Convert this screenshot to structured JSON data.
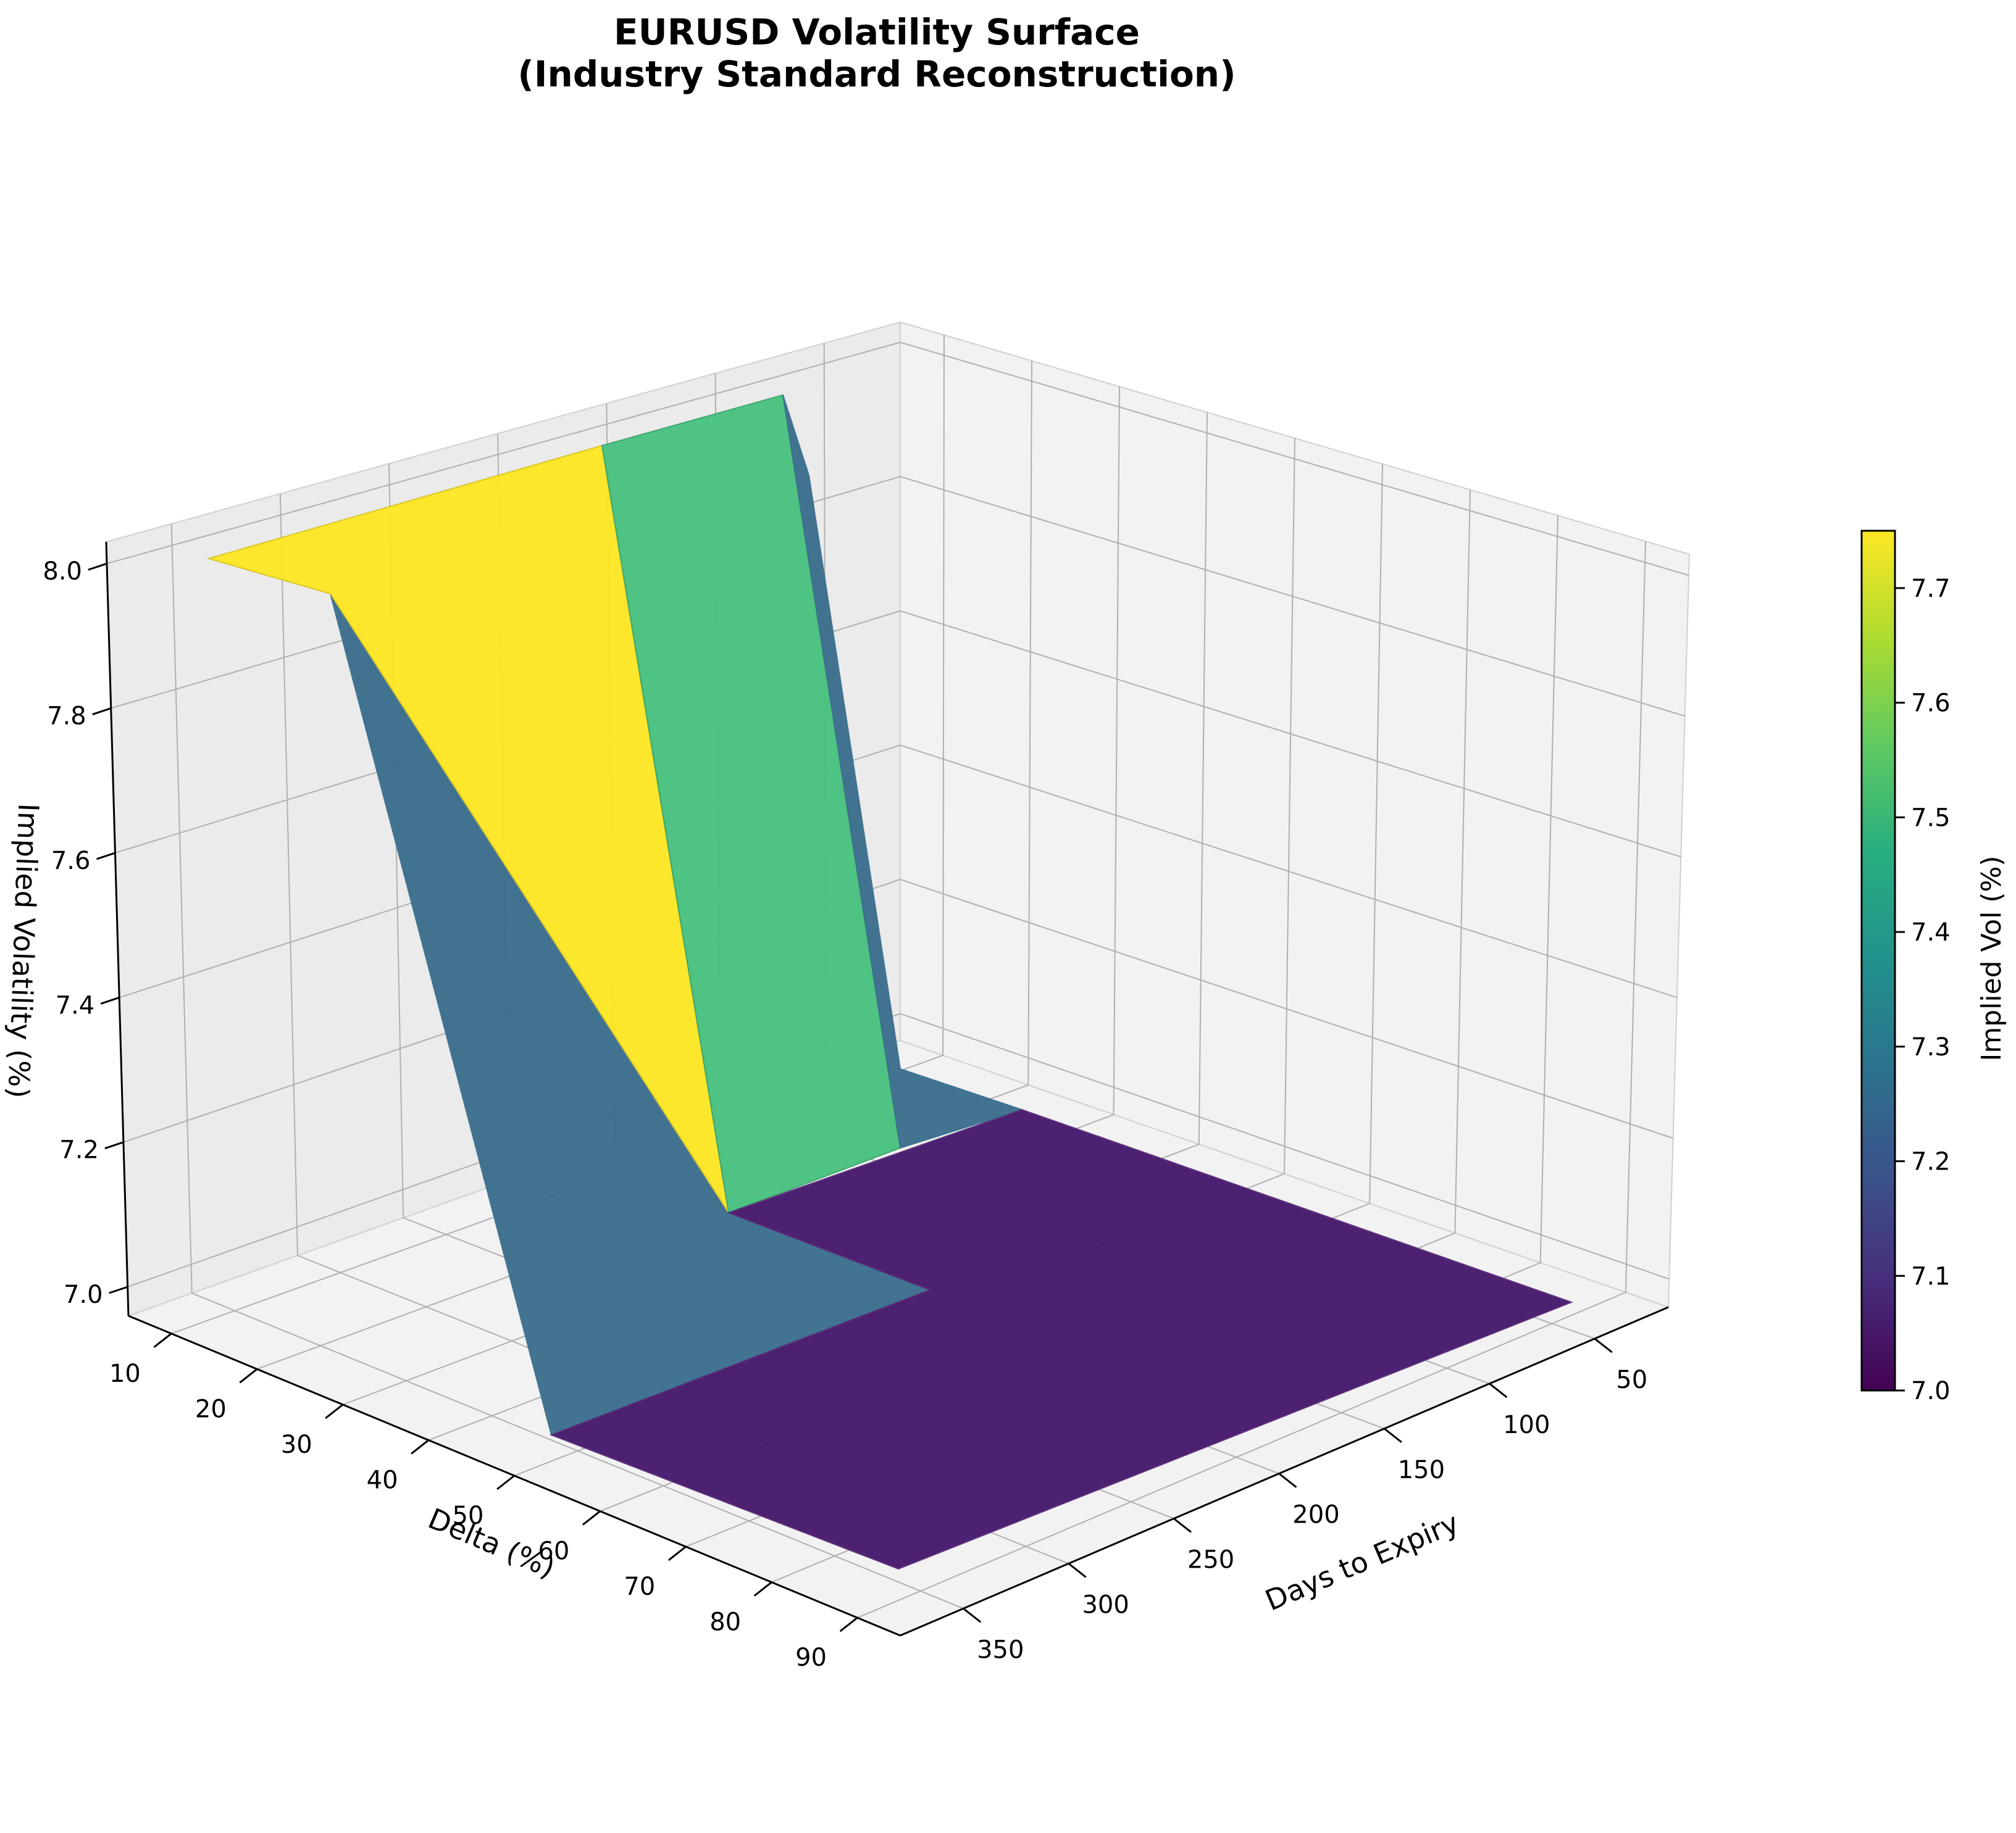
{
  "chart_data": {
    "type": "surface3d",
    "title_line1": "EURUSD Volatility Surface",
    "title_line2": "(Industry Standard Reconstruction)",
    "xlabel": "Days to Expiry",
    "ylabel": "Delta (%)",
    "zlabel": "Implied Volatility (%)",
    "colorbar_label": "Implied Vol (%)",
    "colormap": "viridis",
    "x_ticks": [
      "50",
      "100",
      "150",
      "200",
      "250",
      "300",
      "350"
    ],
    "y_ticks": [
      "10",
      "20",
      "30",
      "40",
      "50",
      "60",
      "70",
      "80",
      "90"
    ],
    "z_ticks": [
      "7.0",
      "7.2",
      "7.4",
      "7.6",
      "7.8",
      "8.0"
    ],
    "colorbar_ticks": [
      "7.0",
      "7.1",
      "7.2",
      "7.3",
      "7.4",
      "7.5",
      "7.6",
      "7.7"
    ],
    "colorbar_range": [
      7.0,
      7.75
    ],
    "surface_faces": [
      {
        "name": "deep-otm-face",
        "value": 7.25,
        "color": "#3b6f8e"
      },
      {
        "name": "short-dated-face",
        "value": 7.75,
        "color": "#fde725"
      },
      {
        "name": "atm-face",
        "value": 7.5,
        "color": "#48c27f"
      },
      {
        "name": "short-dated-otm-face",
        "value": 7.25,
        "color": "#3b6f8e"
      },
      {
        "name": "flat-floor",
        "value": 7.0,
        "color": "#481b6d"
      }
    ]
  }
}
